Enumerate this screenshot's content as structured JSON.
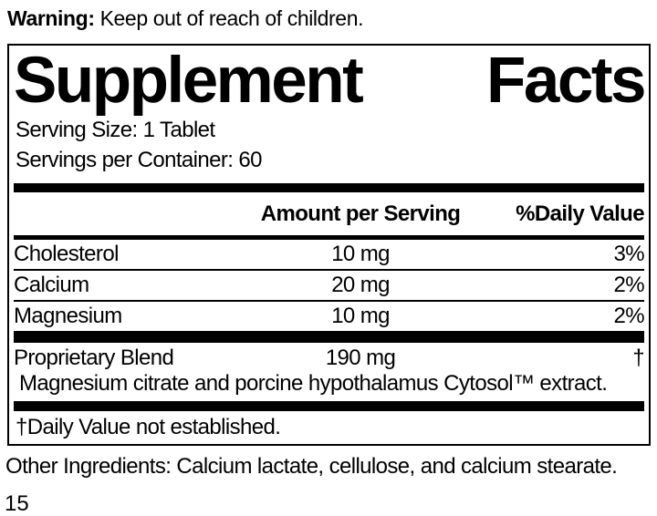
{
  "warning": {
    "label": "Warning:",
    "text": " Keep out of reach of children."
  },
  "panel": {
    "title_left": "Supplement",
    "title_right": "Facts",
    "serving_size": "Serving Size: 1 Tablet",
    "servings_per_container": "Servings per Container: 60",
    "columns": {
      "amount": "Amount per Serving",
      "daily_value": "%Daily Value"
    },
    "rows": [
      {
        "name": "Cholesterol",
        "amount": "10 mg",
        "dv": "3%"
      },
      {
        "name": "Calcium",
        "amount": "20 mg",
        "dv": "2%"
      },
      {
        "name": "Magnesium",
        "amount": "10 mg",
        "dv": "2%"
      }
    ],
    "blend": {
      "name": "Proprietary Blend",
      "amount": "190 mg",
      "dv": "†",
      "description": "Magnesium citrate and porcine hypothalamus Cytosol™ extract."
    },
    "footnote": "†Daily Value not established."
  },
  "other_ingredients": "Other Ingredients: Calcium lactate, cellulose, and calcium stearate.",
  "page_number": "15",
  "colors": {
    "ink": "#000000",
    "background": "#ffffff"
  }
}
